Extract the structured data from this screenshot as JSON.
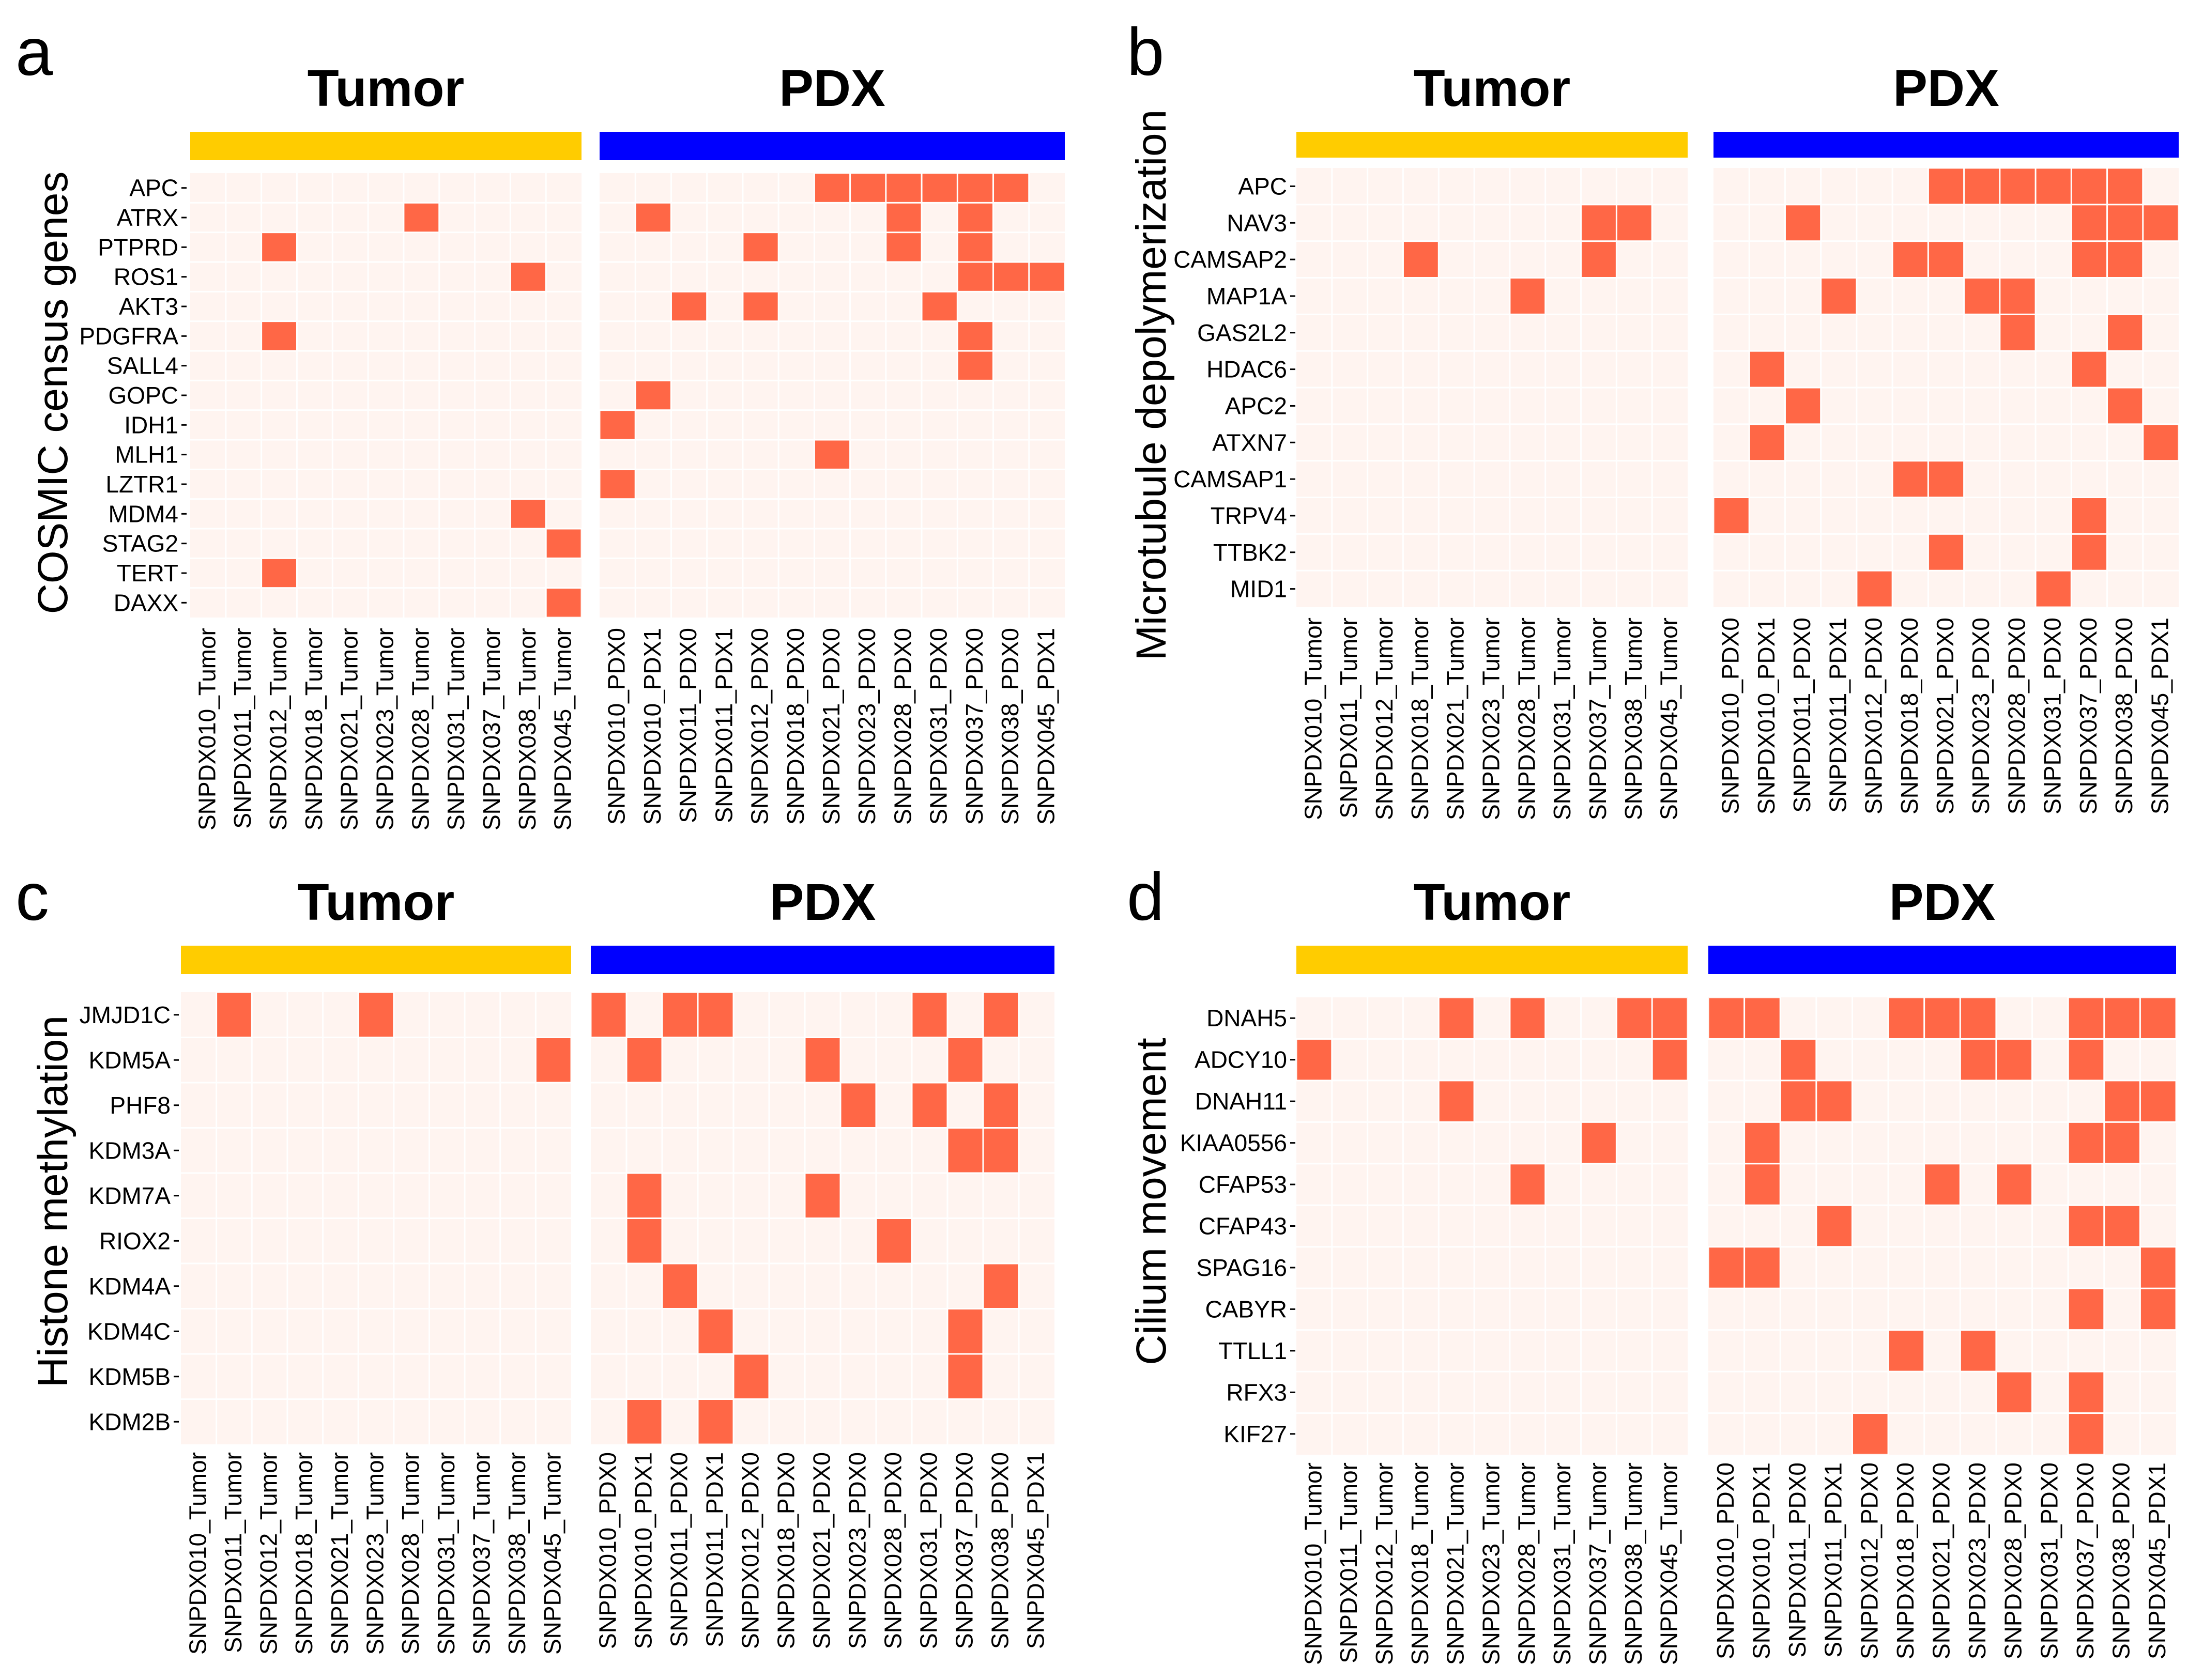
{
  "colors": {
    "tumor_bar": "#FFCC00",
    "pdx_bar": "#0000FF",
    "cell_bg": "#FFF4F0",
    "cell_hit": "#FF6746",
    "text": "#000000"
  },
  "group_titles": {
    "tumor": "Tumor",
    "pdx": "PDX"
  },
  "chart_data": [
    {
      "type": "heatmap",
      "panel": "a",
      "ylabel": "COSMIC census genes",
      "tumor_samples": [
        "SNPDX010_Tumor",
        "SNPDX011_Tumor",
        "SNPDX012_Tumor",
        "SNPDX018_Tumor",
        "SNPDX021_Tumor",
        "SNPDX023_Tumor",
        "SNPDX028_Tumor",
        "SNPDX031_Tumor",
        "SNPDX037_Tumor",
        "SNPDX038_Tumor",
        "SNPDX045_Tumor"
      ],
      "pdx_samples": [
        "SNPDX010_PDX0",
        "SNPDX010_PDX1",
        "SNPDX011_PDX0",
        "SNPDX011_PDX1",
        "SNPDX012_PDX0",
        "SNPDX018_PDX0",
        "SNPDX021_PDX0",
        "SNPDX023_PDX0",
        "SNPDX028_PDX0",
        "SNPDX031_PDX0",
        "SNPDX037_PDX0",
        "SNPDX038_PDX0",
        "SNPDX045_PDX1"
      ],
      "genes": [
        "APC",
        "ATRX",
        "PTPRD",
        "ROS1",
        "AKT3",
        "PDGFRA",
        "SALL4",
        "GOPC",
        "IDH1",
        "MLH1",
        "LZTR1",
        "MDM4",
        "STAG2",
        "TERT",
        "DAXX"
      ],
      "tumor_hits": [
        [
          1,
          6
        ],
        [
          2,
          2
        ],
        [
          3,
          9
        ],
        [
          5,
          2
        ],
        [
          11,
          9
        ],
        [
          12,
          10
        ],
        [
          13,
          2
        ],
        [
          14,
          10
        ]
      ],
      "pdx_hits": [
        [
          0,
          6
        ],
        [
          0,
          7
        ],
        [
          0,
          8
        ],
        [
          0,
          9
        ],
        [
          0,
          10
        ],
        [
          0,
          11
        ],
        [
          1,
          1
        ],
        [
          1,
          8
        ],
        [
          1,
          10
        ],
        [
          2,
          4
        ],
        [
          2,
          8
        ],
        [
          2,
          10
        ],
        [
          3,
          10
        ],
        [
          3,
          11
        ],
        [
          3,
          12
        ],
        [
          4,
          2
        ],
        [
          4,
          4
        ],
        [
          4,
          9
        ],
        [
          5,
          10
        ],
        [
          6,
          10
        ],
        [
          7,
          1
        ],
        [
          8,
          0
        ],
        [
          9,
          6
        ],
        [
          10,
          0
        ]
      ]
    },
    {
      "type": "heatmap",
      "panel": "b",
      "ylabel": "Microtubule depolymerization",
      "tumor_samples": [
        "SNPDX010_Tumor",
        "SNPDX011_Tumor",
        "SNPDX012_Tumor",
        "SNPDX018_Tumor",
        "SNPDX021_Tumor",
        "SNPDX023_Tumor",
        "SNPDX028_Tumor",
        "SNPDX031_Tumor",
        "SNPDX037_Tumor",
        "SNPDX038_Tumor",
        "SNPDX045_Tumor"
      ],
      "pdx_samples": [
        "SNPDX010_PDX0",
        "SNPDX010_PDX1",
        "SNPDX011_PDX0",
        "SNPDX011_PDX1",
        "SNPDX012_PDX0",
        "SNPDX018_PDX0",
        "SNPDX021_PDX0",
        "SNPDX023_PDX0",
        "SNPDX028_PDX0",
        "SNPDX031_PDX0",
        "SNPDX037_PDX0",
        "SNPDX038_PDX0",
        "SNPDX045_PDX1"
      ],
      "genes": [
        "APC",
        "NAV3",
        "CAMSAP2",
        "MAP1A",
        "GAS2L2",
        "HDAC6",
        "APC2",
        "ATXN7",
        "CAMSAP1",
        "TRPV4",
        "TTBK2",
        "MID1"
      ],
      "tumor_hits": [
        [
          1,
          8
        ],
        [
          1,
          9
        ],
        [
          2,
          3
        ],
        [
          2,
          8
        ],
        [
          3,
          6
        ]
      ],
      "pdx_hits": [
        [
          0,
          6
        ],
        [
          0,
          7
        ],
        [
          0,
          8
        ],
        [
          0,
          9
        ],
        [
          0,
          10
        ],
        [
          0,
          11
        ],
        [
          1,
          2
        ],
        [
          1,
          10
        ],
        [
          1,
          11
        ],
        [
          1,
          12
        ],
        [
          2,
          5
        ],
        [
          2,
          6
        ],
        [
          2,
          10
        ],
        [
          2,
          11
        ],
        [
          3,
          3
        ],
        [
          3,
          7
        ],
        [
          3,
          8
        ],
        [
          4,
          8
        ],
        [
          4,
          11
        ],
        [
          5,
          1
        ],
        [
          5,
          10
        ],
        [
          6,
          2
        ],
        [
          6,
          11
        ],
        [
          7,
          1
        ],
        [
          7,
          12
        ],
        [
          8,
          5
        ],
        [
          8,
          6
        ],
        [
          9,
          0
        ],
        [
          9,
          10
        ],
        [
          10,
          6
        ],
        [
          10,
          10
        ],
        [
          11,
          4
        ],
        [
          11,
          9
        ]
      ]
    },
    {
      "type": "heatmap",
      "panel": "c",
      "ylabel": "Histone methylation",
      "tumor_samples": [
        "SNPDX010_Tumor",
        "SNPDX011_Tumor",
        "SNPDX012_Tumor",
        "SNPDX018_Tumor",
        "SNPDX021_Tumor",
        "SNPDX023_Tumor",
        "SNPDX028_Tumor",
        "SNPDX031_Tumor",
        "SNPDX037_Tumor",
        "SNPDX038_Tumor",
        "SNPDX045_Tumor"
      ],
      "pdx_samples": [
        "SNPDX010_PDX0",
        "SNPDX010_PDX1",
        "SNPDX011_PDX0",
        "SNPDX011_PDX1",
        "SNPDX012_PDX0",
        "SNPDX018_PDX0",
        "SNPDX021_PDX0",
        "SNPDX023_PDX0",
        "SNPDX028_PDX0",
        "SNPDX031_PDX0",
        "SNPDX037_PDX0",
        "SNPDX038_PDX0",
        "SNPDX045_PDX1"
      ],
      "genes": [
        "JMJD1C",
        "KDM5A",
        "PHF8",
        "KDM3A",
        "KDM7A",
        "RIOX2",
        "KDM4A",
        "KDM4C",
        "KDM5B",
        "KDM2B"
      ],
      "tumor_hits": [
        [
          0,
          1
        ],
        [
          0,
          5
        ],
        [
          1,
          10
        ]
      ],
      "pdx_hits": [
        [
          0,
          0
        ],
        [
          0,
          2
        ],
        [
          0,
          3
        ],
        [
          0,
          9
        ],
        [
          0,
          11
        ],
        [
          1,
          1
        ],
        [
          1,
          6
        ],
        [
          1,
          10
        ],
        [
          2,
          7
        ],
        [
          2,
          9
        ],
        [
          2,
          11
        ],
        [
          3,
          10
        ],
        [
          3,
          11
        ],
        [
          4,
          1
        ],
        [
          4,
          6
        ],
        [
          5,
          1
        ],
        [
          5,
          8
        ],
        [
          6,
          2
        ],
        [
          6,
          11
        ],
        [
          7,
          3
        ],
        [
          7,
          10
        ],
        [
          8,
          4
        ],
        [
          8,
          10
        ],
        [
          9,
          1
        ],
        [
          9,
          3
        ]
      ]
    },
    {
      "type": "heatmap",
      "panel": "d",
      "ylabel": "Cilium movement",
      "tumor_samples": [
        "SNPDX010_Tumor",
        "SNPDX011_Tumor",
        "SNPDX012_Tumor",
        "SNPDX018_Tumor",
        "SNPDX021_Tumor",
        "SNPDX023_Tumor",
        "SNPDX028_Tumor",
        "SNPDX031_Tumor",
        "SNPDX037_Tumor",
        "SNPDX038_Tumor",
        "SNPDX045_Tumor"
      ],
      "pdx_samples": [
        "SNPDX010_PDX0",
        "SNPDX010_PDX1",
        "SNPDX011_PDX0",
        "SNPDX011_PDX1",
        "SNPDX012_PDX0",
        "SNPDX018_PDX0",
        "SNPDX021_PDX0",
        "SNPDX023_PDX0",
        "SNPDX028_PDX0",
        "SNPDX031_PDX0",
        "SNPDX037_PDX0",
        "SNPDX038_PDX0",
        "SNPDX045_PDX1"
      ],
      "genes": [
        "DNAH5",
        "ADCY10",
        "DNAH11",
        "KIAA0556",
        "CFAP53",
        "CFAP43",
        "SPAG16",
        "CABYR",
        "TTLL1",
        "RFX3",
        "KIF27"
      ],
      "tumor_hits": [
        [
          0,
          4
        ],
        [
          0,
          6
        ],
        [
          0,
          9
        ],
        [
          0,
          10
        ],
        [
          1,
          0
        ],
        [
          1,
          10
        ],
        [
          2,
          4
        ],
        [
          3,
          8
        ],
        [
          4,
          6
        ]
      ],
      "pdx_hits": [
        [
          0,
          0
        ],
        [
          0,
          1
        ],
        [
          0,
          5
        ],
        [
          0,
          6
        ],
        [
          0,
          7
        ],
        [
          0,
          10
        ],
        [
          0,
          11
        ],
        [
          0,
          12
        ],
        [
          1,
          2
        ],
        [
          1,
          7
        ],
        [
          1,
          8
        ],
        [
          1,
          10
        ],
        [
          2,
          2
        ],
        [
          2,
          3
        ],
        [
          2,
          11
        ],
        [
          2,
          12
        ],
        [
          3,
          1
        ],
        [
          3,
          10
        ],
        [
          3,
          11
        ],
        [
          4,
          1
        ],
        [
          4,
          6
        ],
        [
          4,
          8
        ],
        [
          5,
          3
        ],
        [
          5,
          10
        ],
        [
          5,
          11
        ],
        [
          6,
          0
        ],
        [
          6,
          1
        ],
        [
          6,
          12
        ],
        [
          7,
          10
        ],
        [
          7,
          12
        ],
        [
          8,
          5
        ],
        [
          8,
          7
        ],
        [
          9,
          8
        ],
        [
          9,
          10
        ],
        [
          10,
          4
        ],
        [
          10,
          10
        ]
      ]
    }
  ]
}
